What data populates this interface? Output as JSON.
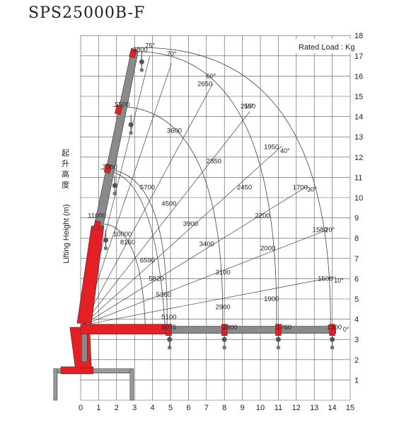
{
  "title": "SPS25000B-F",
  "rated_load_label": "Rated Load : Kg",
  "ylabel_cn": "起升高度",
  "ylabel_en": "Lifting Height (m)",
  "colors": {
    "boom": "#e41f26",
    "boom_dark": "#8a8a8a",
    "hook": "#555555",
    "grid": "#555555"
  },
  "x_ticks": [
    "0",
    "1",
    "2",
    "3",
    "4",
    "5",
    "6",
    "7",
    "8",
    "9",
    "10",
    "11",
    "12",
    "13",
    "14",
    "15"
  ],
  "y_ticks": [
    "1",
    "2",
    "3",
    "4",
    "5",
    "6",
    "7",
    "8",
    "9",
    "10",
    "11",
    "12",
    "13",
    "14",
    "15",
    "16",
    "17",
    "18"
  ],
  "angles": [
    {
      "label": "75°",
      "x": 3.6,
      "y": 17.4
    },
    {
      "label": "70°",
      "x": 4.8,
      "y": 17.0
    },
    {
      "label": "60°",
      "x": 7.0,
      "y": 15.9
    },
    {
      "label": "50°",
      "x": 9.1,
      "y": 14.4
    },
    {
      "label": "40°",
      "x": 11.1,
      "y": 12.2
    },
    {
      "label": "30°",
      "x": 12.6,
      "y": 10.3
    },
    {
      "label": "20°",
      "x": 13.6,
      "y": 8.3
    },
    {
      "label": "10°",
      "x": 14.1,
      "y": 5.8
    },
    {
      "label": "0°",
      "x": 14.6,
      "y": 3.4
    }
  ],
  "loads": [
    {
      "label": "3800",
      "x": 2.9,
      "y": 17.2
    },
    {
      "label": "2650",
      "x": 6.5,
      "y": 15.5
    },
    {
      "label": "2150",
      "x": 8.9,
      "y": 14.4
    },
    {
      "label": "5500",
      "x": 1.9,
      "y": 14.5
    },
    {
      "label": "3600",
      "x": 4.8,
      "y": 13.2
    },
    {
      "label": "1950",
      "x": 10.2,
      "y": 12.4
    },
    {
      "label": "7000",
      "x": 1.2,
      "y": 11.4
    },
    {
      "label": "2850",
      "x": 7.0,
      "y": 11.7
    },
    {
      "label": "1700",
      "x": 11.8,
      "y": 10.4
    },
    {
      "label": "5700",
      "x": 3.3,
      "y": 10.4
    },
    {
      "label": "2450",
      "x": 8.7,
      "y": 10.4
    },
    {
      "label": "4500",
      "x": 4.5,
      "y": 9.6
    },
    {
      "label": "11000",
      "x": 0.4,
      "y": 9.0
    },
    {
      "label": "2200",
      "x": 9.7,
      "y": 9.0
    },
    {
      "label": "1580",
      "x": 12.9,
      "y": 8.3
    },
    {
      "label": "3900",
      "x": 5.7,
      "y": 8.6
    },
    {
      "label": "10000",
      "x": 1.8,
      "y": 8.1
    },
    {
      "label": "8160",
      "x": 2.2,
      "y": 7.7
    },
    {
      "label": "3400",
      "x": 6.6,
      "y": 7.6
    },
    {
      "label": "2000",
      "x": 10.0,
      "y": 7.4
    },
    {
      "label": "6590",
      "x": 3.3,
      "y": 6.8
    },
    {
      "label": "3100",
      "x": 7.5,
      "y": 6.2
    },
    {
      "label": "5820",
      "x": 3.8,
      "y": 5.9
    },
    {
      "label": "1500",
      "x": 13.2,
      "y": 5.9
    },
    {
      "label": "1900",
      "x": 10.2,
      "y": 4.9
    },
    {
      "label": "5360",
      "x": 4.2,
      "y": 5.1
    },
    {
      "label": "2900",
      "x": 7.5,
      "y": 4.5
    },
    {
      "label": "5100",
      "x": 4.5,
      "y": 4.0
    },
    {
      "label": "5075",
      "x": 4.5,
      "y": 3.5
    },
    {
      "label": "2800",
      "x": 7.9,
      "y": 3.5
    },
    {
      "label": "1760",
      "x": 10.9,
      "y": 3.5
    },
    {
      "label": "1300",
      "x": 13.7,
      "y": 3.5
    }
  ]
}
